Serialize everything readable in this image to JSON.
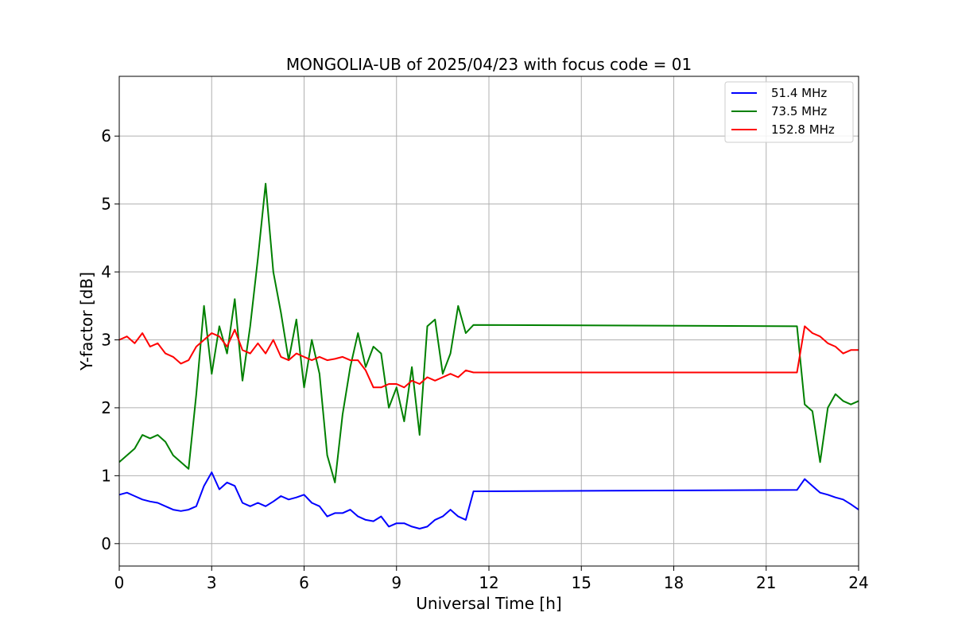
{
  "chart_data": {
    "type": "line",
    "title": "MONGOLIA-UB of 2025/04/23 with focus code = 01",
    "xlabel": "Universal Time [h]",
    "ylabel": "Y-factor [dB]",
    "xlim": [
      0,
      24
    ],
    "ylim": [
      -0.33,
      6.88
    ],
    "xticks": [
      0,
      3,
      6,
      9,
      12,
      15,
      18,
      21,
      24
    ],
    "xtick_labels": [
      "0",
      "3",
      "6",
      "9",
      "12",
      "15",
      "18",
      "21",
      "24"
    ],
    "yticks": [
      0,
      1,
      2,
      3,
      4,
      5,
      6
    ],
    "ytick_labels": [
      "0",
      "1",
      "2",
      "3",
      "4",
      "5",
      "6"
    ],
    "grid": true,
    "legend_position": "top-right",
    "series": [
      {
        "name": " 51.4 MHz",
        "color": "#0000ff",
        "x": [
          0,
          0.25,
          0.5,
          0.75,
          1.0,
          1.25,
          1.5,
          1.75,
          2.0,
          2.25,
          2.5,
          2.75,
          3.0,
          3.25,
          3.5,
          3.75,
          4.0,
          4.25,
          4.5,
          4.75,
          5.0,
          5.25,
          5.5,
          5.75,
          6.0,
          6.25,
          6.5,
          6.75,
          7.0,
          7.25,
          7.5,
          7.75,
          8.0,
          8.25,
          8.5,
          8.75,
          9.0,
          9.25,
          9.5,
          9.75,
          10.0,
          10.25,
          10.5,
          10.75,
          11.0,
          11.25,
          11.5,
          22.0,
          22.25,
          22.5,
          22.75,
          23.0,
          23.25,
          23.5,
          23.75,
          24.0
        ],
        "y": [
          0.72,
          0.75,
          0.7,
          0.65,
          0.62,
          0.6,
          0.55,
          0.5,
          0.48,
          0.5,
          0.55,
          0.85,
          1.05,
          0.8,
          0.9,
          0.85,
          0.6,
          0.55,
          0.6,
          0.55,
          0.62,
          0.7,
          0.65,
          0.68,
          0.72,
          0.6,
          0.55,
          0.4,
          0.45,
          0.45,
          0.5,
          0.4,
          0.35,
          0.33,
          0.4,
          0.25,
          0.3,
          0.3,
          0.25,
          0.22,
          0.25,
          0.35,
          0.4,
          0.5,
          0.4,
          0.35,
          0.77,
          0.79,
          0.95,
          0.85,
          0.75,
          0.72,
          0.68,
          0.65,
          0.58,
          0.5
        ]
      },
      {
        "name": " 73.5 MHz",
        "color": "#008000",
        "x": [
          0,
          0.25,
          0.5,
          0.75,
          1.0,
          1.25,
          1.5,
          1.75,
          2.0,
          2.25,
          2.5,
          2.75,
          3.0,
          3.25,
          3.5,
          3.75,
          4.0,
          4.25,
          4.5,
          4.75,
          5.0,
          5.25,
          5.5,
          5.75,
          6.0,
          6.25,
          6.5,
          6.75,
          7.0,
          7.25,
          7.5,
          7.75,
          8.0,
          8.25,
          8.5,
          8.75,
          9.0,
          9.25,
          9.5,
          9.75,
          10.0,
          10.25,
          10.5,
          10.75,
          11.0,
          11.25,
          11.5,
          22.0,
          22.25,
          22.5,
          22.75,
          23.0,
          23.25,
          23.5,
          23.75,
          24.0
        ],
        "y": [
          1.2,
          1.3,
          1.4,
          1.6,
          1.55,
          1.6,
          1.5,
          1.3,
          1.2,
          1.1,
          2.2,
          3.5,
          2.5,
          3.2,
          2.8,
          3.6,
          2.4,
          3.2,
          4.2,
          5.3,
          4.0,
          3.4,
          2.7,
          3.3,
          2.3,
          3.0,
          2.5,
          1.3,
          0.9,
          1.9,
          2.6,
          3.1,
          2.6,
          2.9,
          2.8,
          2.0,
          2.3,
          1.8,
          2.6,
          1.6,
          3.2,
          3.3,
          2.5,
          2.8,
          3.5,
          3.1,
          3.22,
          3.2,
          2.05,
          1.95,
          1.2,
          2.0,
          2.2,
          2.1,
          2.05,
          2.1
        ]
      },
      {
        "name": "152.8 MHz",
        "color": "#ff0000",
        "x": [
          0,
          0.25,
          0.5,
          0.75,
          1.0,
          1.25,
          1.5,
          1.75,
          2.0,
          2.25,
          2.5,
          2.75,
          3.0,
          3.25,
          3.5,
          3.75,
          4.0,
          4.25,
          4.5,
          4.75,
          5.0,
          5.25,
          5.5,
          5.75,
          6.0,
          6.25,
          6.5,
          6.75,
          7.0,
          7.25,
          7.5,
          7.75,
          8.0,
          8.25,
          8.5,
          8.75,
          9.0,
          9.25,
          9.5,
          9.75,
          10.0,
          10.25,
          10.5,
          10.75,
          11.0,
          11.25,
          11.5,
          22.0,
          22.25,
          22.5,
          22.75,
          23.0,
          23.25,
          23.5,
          23.75,
          24.0
        ],
        "y": [
          3.0,
          3.05,
          2.95,
          3.1,
          2.9,
          2.95,
          2.8,
          2.75,
          2.65,
          2.7,
          2.9,
          3.0,
          3.1,
          3.05,
          2.9,
          3.15,
          2.85,
          2.8,
          2.95,
          2.8,
          3.0,
          2.75,
          2.7,
          2.8,
          2.75,
          2.7,
          2.75,
          2.7,
          2.72,
          2.75,
          2.7,
          2.7,
          2.55,
          2.3,
          2.3,
          2.35,
          2.35,
          2.3,
          2.4,
          2.35,
          2.45,
          2.4,
          2.45,
          2.5,
          2.45,
          2.55,
          2.52,
          2.52,
          3.2,
          3.1,
          3.05,
          2.95,
          2.9,
          2.8,
          2.85,
          2.85
        ]
      }
    ]
  }
}
